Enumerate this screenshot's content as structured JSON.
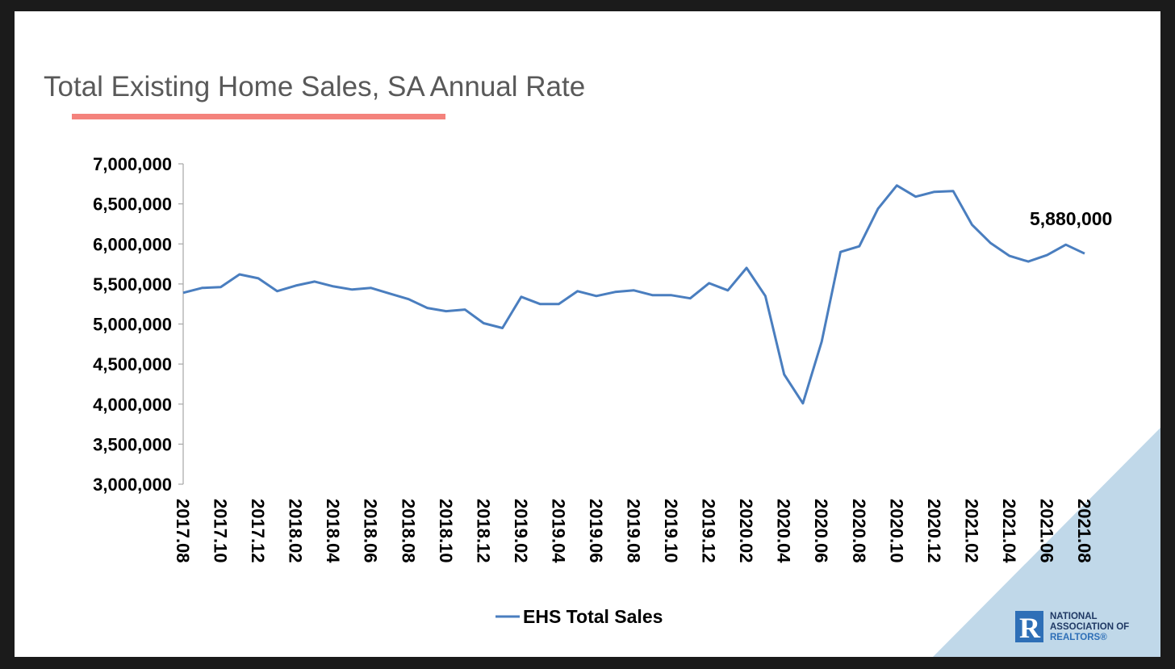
{
  "colors": {
    "line": "#4a7ebf",
    "title_underline": "#f4827c",
    "corner_triangle": "#c0d8e9",
    "logo_blue": "#2e6fb7",
    "logo_navy": "#1f3864"
  },
  "logo": {
    "line1": "NATIONAL",
    "line2": "ASSOCIATION OF",
    "line3": "REALTORS®",
    "mark": "R"
  },
  "chart_data": {
    "type": "line",
    "title": "Total Existing Home Sales, SA Annual Rate",
    "xlabel": "",
    "ylabel": "",
    "ylim": [
      3000000,
      7000000
    ],
    "yticks": [
      3000000,
      3500000,
      4000000,
      4500000,
      5000000,
      5500000,
      6000000,
      6500000,
      7000000
    ],
    "ytick_labels": [
      "3,000,000",
      "3,500,000",
      "4,000,000",
      "4,500,000",
      "5,000,000",
      "5,500,000",
      "6,000,000",
      "6,500,000",
      "7,000,000"
    ],
    "grid": false,
    "legend_position": "bottom",
    "x": [
      "2017.08",
      "2017.09",
      "2017.10",
      "2017.11",
      "2017.12",
      "2018.01",
      "2018.02",
      "2018.03",
      "2018.04",
      "2018.05",
      "2018.06",
      "2018.07",
      "2018.08",
      "2018.09",
      "2018.10",
      "2018.11",
      "2018.12",
      "2019.01",
      "2019.02",
      "2019.03",
      "2019.04",
      "2019.05",
      "2019.06",
      "2019.07",
      "2019.08",
      "2019.09",
      "2019.10",
      "2019.11",
      "2019.12",
      "2020.01",
      "2020.02",
      "2020.03",
      "2020.04",
      "2020.05",
      "2020.06",
      "2020.07",
      "2020.08",
      "2020.09",
      "2020.10",
      "2020.11",
      "2020.12",
      "2021.01",
      "2021.02",
      "2021.03",
      "2021.04",
      "2021.05",
      "2021.06",
      "2021.07",
      "2021.08"
    ],
    "x_tick_labels": [
      "2017.08",
      "2017.10",
      "2017.12",
      "2018.02",
      "2018.04",
      "2018.06",
      "2018.08",
      "2018.10",
      "2018.12",
      "2019.02",
      "2019.04",
      "2019.06",
      "2019.08",
      "2019.10",
      "2019.12",
      "2020.02",
      "2020.04",
      "2020.06",
      "2020.08",
      "2020.10",
      "2020.12",
      "2021.02",
      "2021.04",
      "2021.06",
      "2021.08"
    ],
    "series": [
      {
        "name": "EHS Total Sales",
        "values": [
          5390000,
          5450000,
          5460000,
          5620000,
          5570000,
          5410000,
          5480000,
          5530000,
          5470000,
          5430000,
          5450000,
          5380000,
          5310000,
          5200000,
          5160000,
          5180000,
          5010000,
          4950000,
          5340000,
          5250000,
          5250000,
          5410000,
          5350000,
          5400000,
          5420000,
          5360000,
          5360000,
          5320000,
          5510000,
          5420000,
          5700000,
          5350000,
          4370000,
          4010000,
          4780000,
          5900000,
          5970000,
          6440000,
          6730000,
          6590000,
          6650000,
          6660000,
          6240000,
          6010000,
          5850000,
          5780000,
          5860000,
          5990000,
          5880000
        ]
      }
    ],
    "annotations": [
      {
        "text": "5,880,000",
        "x": "2021.08",
        "y": 5880000
      }
    ]
  }
}
